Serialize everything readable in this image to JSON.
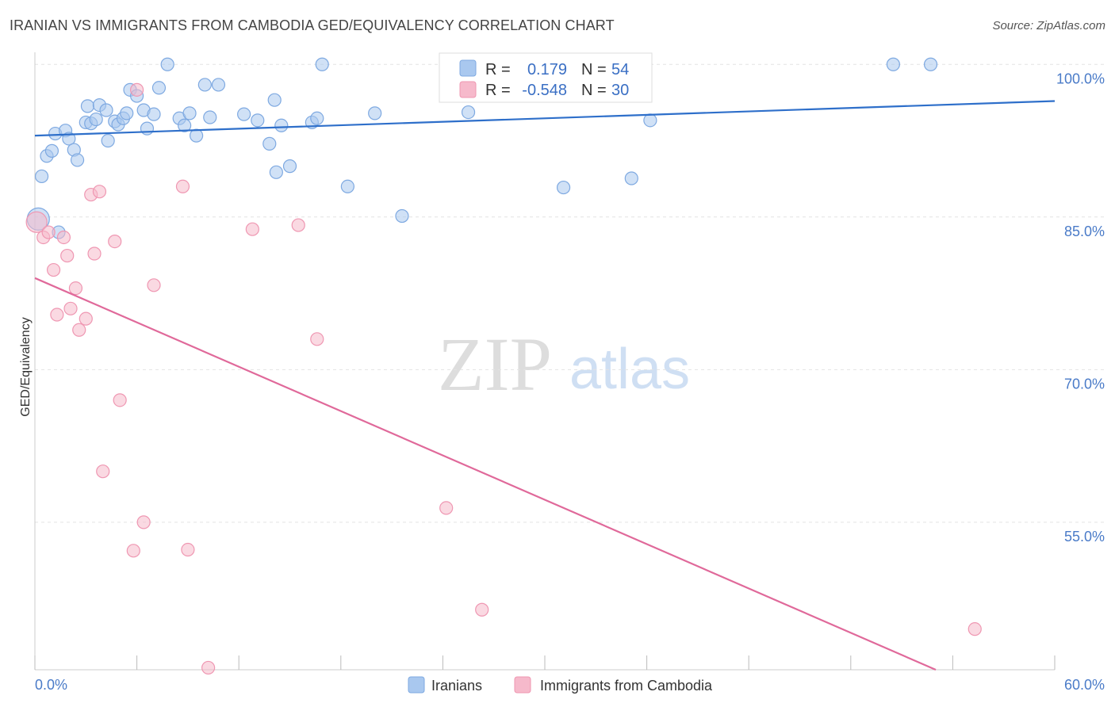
{
  "header": {
    "title": "IRANIAN VS IMMIGRANTS FROM CAMBODIA GED/EQUIVALENCY CORRELATION CHART",
    "source": "Source: ZipAtlas.com"
  },
  "watermark": {
    "part1": "ZIP",
    "part2": "atlas"
  },
  "legend": {
    "r_label": "R =",
    "n_label": "N =",
    "rows": [
      {
        "r": "0.179",
        "n": "54",
        "color": "#a9c8ef"
      },
      {
        "r": "-0.548",
        "n": "30",
        "color": "#f6b9cb"
      }
    ]
  },
  "colors": {
    "blue_fill": "#a9c8ef",
    "blue_stroke": "#7ea9e1",
    "blue_line": "#2e6fca",
    "pink_fill": "#f6b9cb",
    "pink_stroke": "#ef97b2",
    "pink_line": "#e0699a",
    "tick_text": "#4a7bc8",
    "grid": "#e3e3e3"
  },
  "chart_data": {
    "type": "scatter",
    "title": "IRANIAN VS IMMIGRANTS FROM CAMBODIA GED/EQUIVALENCY CORRELATION CHART",
    "xlabel": "",
    "ylabel": "GED/Equivalency",
    "xlim": [
      0,
      60
    ],
    "ylim": [
      40.5,
      101.5
    ],
    "x_tick_labels": [
      "0.0%",
      "60.0%"
    ],
    "y_ticks": [
      100,
      85,
      70,
      55
    ],
    "y_tick_labels": [
      "100.0%",
      "85.0%",
      "70.0%",
      "55.0%"
    ],
    "grid": true,
    "legend_position": "bottom",
    "series": [
      {
        "name": "Iranians",
        "color": "#a9c8ef",
        "trend": {
          "x": [
            0,
            60
          ],
          "y": [
            93.0,
            96.4
          ]
        },
        "points": [
          [
            0.2,
            84.8
          ],
          [
            0.4,
            89.0
          ],
          [
            0.7,
            91.0
          ],
          [
            1.0,
            91.5
          ],
          [
            1.2,
            93.2
          ],
          [
            1.4,
            83.5
          ],
          [
            1.8,
            93.5
          ],
          [
            2.0,
            92.7
          ],
          [
            2.3,
            91.6
          ],
          [
            2.5,
            90.6
          ],
          [
            3.0,
            94.3
          ],
          [
            3.1,
            95.9
          ],
          [
            3.3,
            94.2
          ],
          [
            3.6,
            94.6
          ],
          [
            3.8,
            96.0
          ],
          [
            4.2,
            95.5
          ],
          [
            4.3,
            92.5
          ],
          [
            4.7,
            94.4
          ],
          [
            4.9,
            94.1
          ],
          [
            5.2,
            94.7
          ],
          [
            5.4,
            95.2
          ],
          [
            5.6,
            97.5
          ],
          [
            6.0,
            96.9
          ],
          [
            6.4,
            95.5
          ],
          [
            6.6,
            93.7
          ],
          [
            7.0,
            95.1
          ],
          [
            7.3,
            97.7
          ],
          [
            7.8,
            100.0
          ],
          [
            8.5,
            94.7
          ],
          [
            8.8,
            94.0
          ],
          [
            9.1,
            95.2
          ],
          [
            9.5,
            93.0
          ],
          [
            10.0,
            98.0
          ],
          [
            10.3,
            94.8
          ],
          [
            10.8,
            98.0
          ],
          [
            12.3,
            95.1
          ],
          [
            13.1,
            94.5
          ],
          [
            13.8,
            92.2
          ],
          [
            14.1,
            96.5
          ],
          [
            14.2,
            89.4
          ],
          [
            14.5,
            94.0
          ],
          [
            15.0,
            90.0
          ],
          [
            16.3,
            94.3
          ],
          [
            16.6,
            94.7
          ],
          [
            16.9,
            100.0
          ],
          [
            18.4,
            88.0
          ],
          [
            20.0,
            95.2
          ],
          [
            21.6,
            85.1
          ],
          [
            25.5,
            95.3
          ],
          [
            31.1,
            87.9
          ],
          [
            35.1,
            88.8
          ],
          [
            36.2,
            94.5
          ],
          [
            50.5,
            100.0
          ],
          [
            52.7,
            100.0
          ]
        ]
      },
      {
        "name": "Immigrants from Cambodia",
        "color": "#f6b9cb",
        "trend": {
          "x": [
            0,
            53
          ],
          "y": [
            79.0,
            40.5
          ]
        },
        "points": [
          [
            0.1,
            84.5
          ],
          [
            0.5,
            83.0
          ],
          [
            0.8,
            83.5
          ],
          [
            1.1,
            79.8
          ],
          [
            1.3,
            75.4
          ],
          [
            1.7,
            83.0
          ],
          [
            1.9,
            81.2
          ],
          [
            2.1,
            76.0
          ],
          [
            2.4,
            78.0
          ],
          [
            2.6,
            73.9
          ],
          [
            3.0,
            75.0
          ],
          [
            3.3,
            87.2
          ],
          [
            3.5,
            81.4
          ],
          [
            3.8,
            87.5
          ],
          [
            4.0,
            60.0
          ],
          [
            4.7,
            82.6
          ],
          [
            5.0,
            67.0
          ],
          [
            5.8,
            52.2
          ],
          [
            6.0,
            97.5
          ],
          [
            6.4,
            55.0
          ],
          [
            7.0,
            78.3
          ],
          [
            8.7,
            88.0
          ],
          [
            9.0,
            52.3
          ],
          [
            10.2,
            40.7
          ],
          [
            12.8,
            83.8
          ],
          [
            15.5,
            84.2
          ],
          [
            16.6,
            73.0
          ],
          [
            24.2,
            56.4
          ],
          [
            26.3,
            46.4
          ],
          [
            55.3,
            44.5
          ]
        ]
      }
    ]
  }
}
